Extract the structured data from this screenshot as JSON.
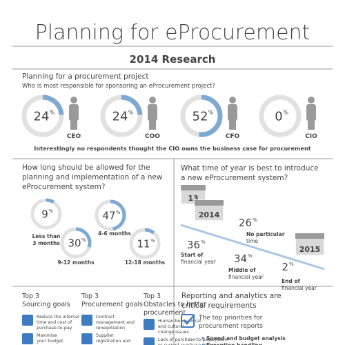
{
  "header": {
    "title": "Planning for eProcurement",
    "subtitle": "2014 Research"
  },
  "percent_sign": "%",
  "sponsor": {
    "heading": "Planning for a procurement project",
    "question": "Who is most responsible for sponsoring an eProcurement project?",
    "items": [
      {
        "role": "CEO",
        "value": 24
      },
      {
        "role": "COO",
        "value": 24
      },
      {
        "role": "CFO",
        "value": 52
      },
      {
        "role": "CIO",
        "value": 0
      }
    ],
    "note": "Interestingly no respondents thought the CIO owns the business case for procurement"
  },
  "duration": {
    "question": [
      "How long should be allowed for the",
      "planning and implementation of a new",
      "eProcurement system?"
    ],
    "items": [
      {
        "value": 9,
        "label": [
          "Less than",
          "3 months"
        ]
      },
      {
        "value": 47,
        "label": [
          "4-6 months"
        ]
      },
      {
        "value": 30,
        "label": [
          "9-12 months"
        ]
      },
      {
        "value": 11,
        "label": [
          "12-18 months"
        ]
      }
    ]
  },
  "timing": {
    "question": [
      "What time of year is best to introduce",
      "a new eProcurement system?"
    ],
    "calendars": [
      "13",
      "2014",
      "2015"
    ],
    "items": [
      {
        "value": 26,
        "label": [
          "No particular",
          "time"
        ]
      },
      {
        "value": 36,
        "label": [
          "Start of",
          "financial year"
        ]
      },
      {
        "value": 34,
        "label": [
          "Middle of",
          "financial year"
        ]
      },
      {
        "value": 2,
        "label": [
          "End of",
          "financial year"
        ]
      }
    ]
  },
  "goals": [
    {
      "title": [
        "Top 3",
        "Sourcing goals"
      ],
      "items": [
        [
          "Reduce the internal",
          "time and cost of",
          "purchase-to-pay"
        ],
        [
          "Maximise",
          "your budget"
        ]
      ]
    },
    {
      "title": [
        "Top 3",
        "Procurement goals"
      ],
      "items": [
        [
          "Contract",
          "management and",
          "renegotiation"
        ],
        [
          "Supplier",
          "registration and"
        ]
      ]
    },
    {
      "title": [
        "Top 3",
        "Obstacles to better",
        "procurement"
      ],
      "items": [
        [
          "Human behavioural",
          "and cultural",
          "change issues"
        ],
        [
          "Lack of purchase-to-pay system",
          "or current purchase-to-pay"
        ]
      ]
    }
  ],
  "reporting": {
    "title": [
      "Reporting and analytics are",
      "critical requirements"
    ],
    "box": [
      "The top priorities for",
      "procurement reports"
    ],
    "bullets": [
      "Spend and budget analysis",
      "Exception handling"
    ]
  }
}
